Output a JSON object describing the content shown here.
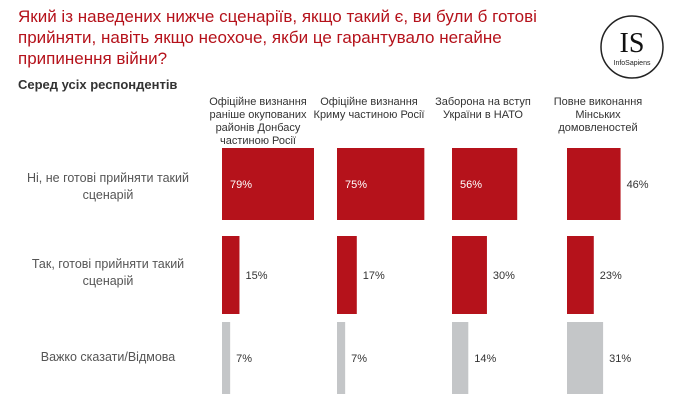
{
  "title": "Який із наведених нижче сценаріїв, якщо такий є, ви були б готові прийняти, навіть якщо неохоче, якби це гарантувало негайне припинення війни?",
  "subtitle": "Серед усіх респондентів",
  "logo": {
    "letters": "IS",
    "text": "InfoSapiens"
  },
  "colors": {
    "red": "#b5121b",
    "gray": "#c4c6c8",
    "title": "#b5121b"
  },
  "chart_data": {
    "type": "bar",
    "orientation": "vertical-small-multiples",
    "categories": [
      "Офіційне визнання раніше окупованих районів Донбасу частиною Росії",
      "Офіційне визнання Криму частиною Росії",
      "Заборона на вступ України в НАТО",
      "Повне виконання Мінських домовленостей"
    ],
    "series": [
      {
        "name": "Ні, не готові прийняти такий сценарій",
        "values": [
          79,
          75,
          56,
          46
        ],
        "labels": [
          "79%",
          "75%",
          "56%",
          "46%"
        ],
        "color": "#b5121b"
      },
      {
        "name": "Так, готові прийняти такий сценарій",
        "values": [
          15,
          17,
          30,
          23
        ],
        "labels": [
          "15%",
          "17%",
          "30%",
          "23%"
        ],
        "color": "#b5121b"
      },
      {
        "name": "Важко сказати/Відмова",
        "values": [
          7,
          7,
          14,
          31
        ],
        "labels": [
          "7%",
          "7%",
          "14%",
          "31%"
        ],
        "color": "#c4c6c8"
      }
    ],
    "unit": "%"
  }
}
